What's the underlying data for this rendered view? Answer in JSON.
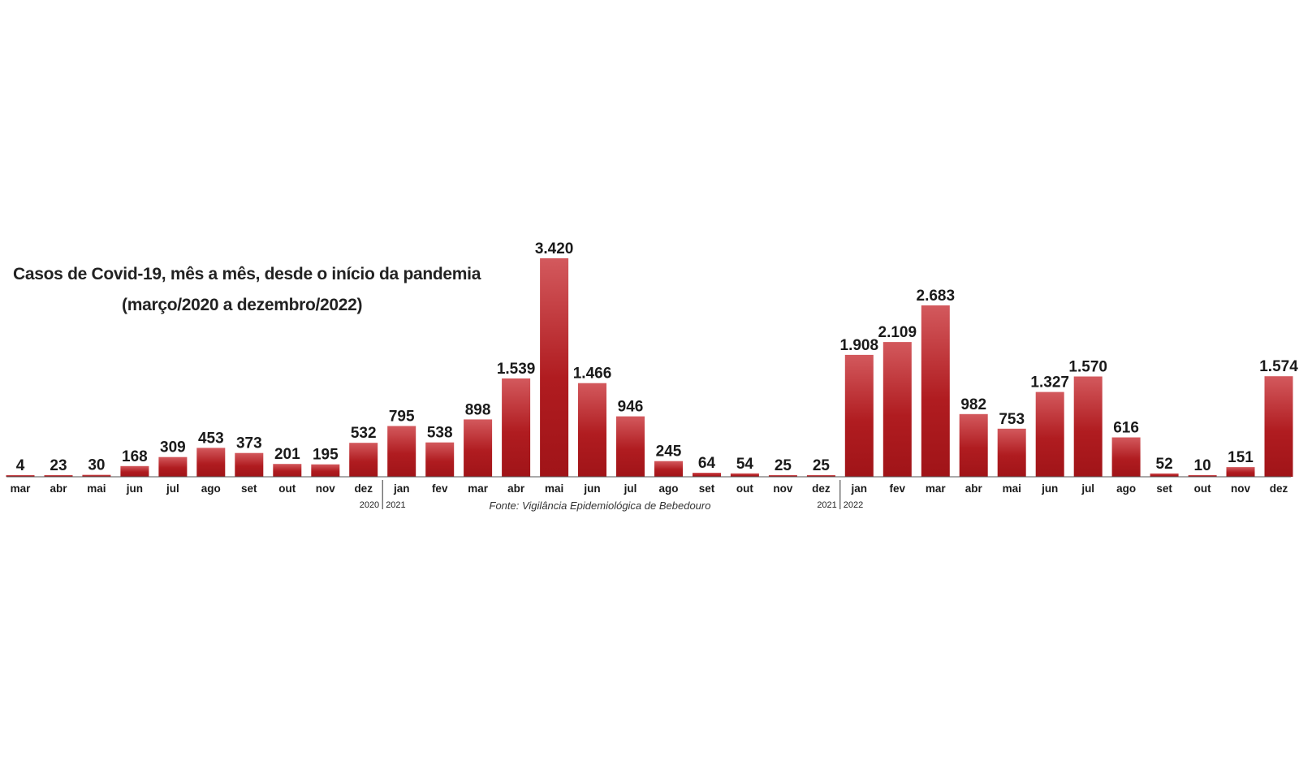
{
  "chart_data": {
    "type": "bar",
    "title": "Casos de Covid-19, mês a mês, desde o início da pandemia",
    "subtitle": "(março/2020 a dezembro/2022)",
    "source": "Fonte: Vigilância Epidemiológica de Bebedouro",
    "xlabel": "",
    "ylabel": "",
    "bar_color": "#b01c20",
    "ylim": [
      0,
      3420
    ],
    "grid": false,
    "categories": [
      "mar",
      "abr",
      "mai",
      "jun",
      "jul",
      "ago",
      "set",
      "out",
      "nov",
      "dez",
      "jan",
      "fev",
      "mar",
      "abr",
      "mai",
      "jun",
      "jul",
      "ago",
      "set",
      "out",
      "nov",
      "dez",
      "jan",
      "fev",
      "mar",
      "abr",
      "mai",
      "jun",
      "jul",
      "ago",
      "set",
      "out",
      "nov",
      "dez"
    ],
    "values": [
      4,
      23,
      30,
      168,
      309,
      453,
      373,
      201,
      195,
      532,
      795,
      538,
      898,
      1539,
      3420,
      1466,
      946,
      245,
      64,
      54,
      25,
      25,
      1908,
      2109,
      2683,
      982,
      753,
      1327,
      1570,
      616,
      52,
      10,
      151,
      1574
    ],
    "value_labels": [
      "4",
      "23",
      "30",
      "168",
      "309",
      "453",
      "373",
      "201",
      "195",
      "532",
      "795",
      "538",
      "898",
      "1.539",
      "3.420",
      "1.466",
      "946",
      "245",
      "64",
      "54",
      "25",
      "25",
      "1.908",
      "2.109",
      "2.683",
      "982",
      "753",
      "1.327",
      "1.570",
      "616",
      "52",
      "10",
      "151",
      "1.574"
    ],
    "year_markers": [
      {
        "end_label": "2020",
        "start_label": "2021",
        "after_index": 9
      },
      {
        "end_label": "2021",
        "start_label": "2022",
        "after_index": 21
      }
    ]
  }
}
